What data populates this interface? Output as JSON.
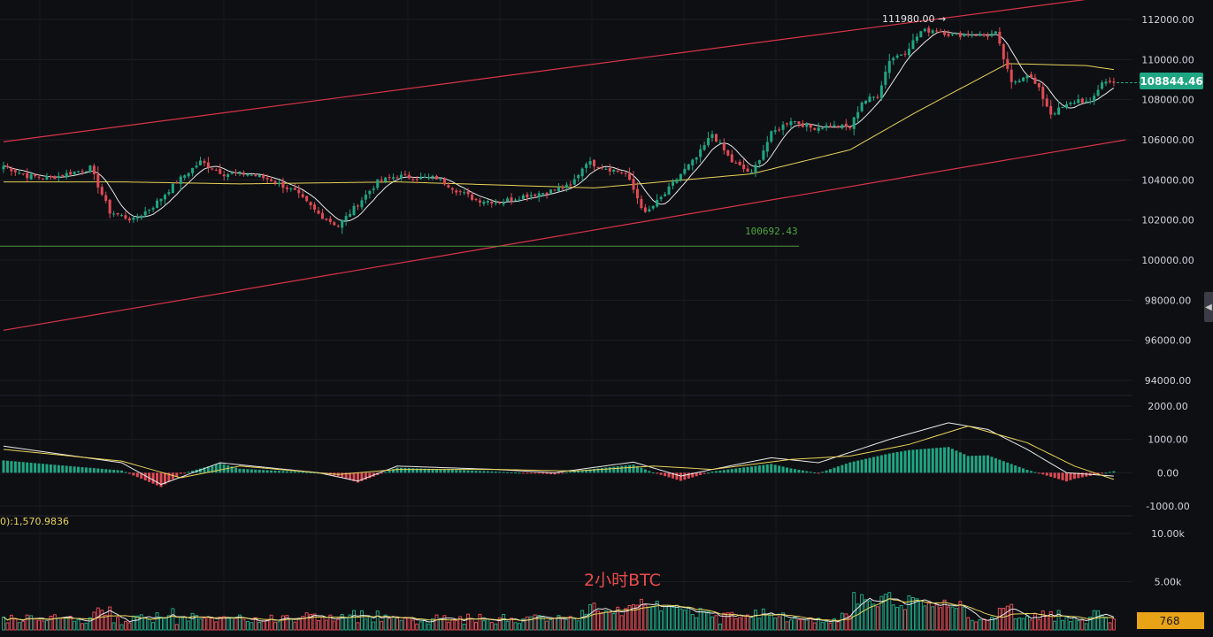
{
  "chart_data": [
    {
      "type": "candlestick",
      "title": "",
      "annotation_title": "2小时BTC",
      "yaxis": {
        "ticks": [
          "112000.00",
          "110000.00",
          "108000.00",
          "106000.00",
          "104000.00",
          "102000.00",
          "100000.00",
          "98000.00",
          "96000.00",
          "94000.00"
        ],
        "tick_values": [
          112000,
          110000,
          108000,
          106000,
          104000,
          102000,
          100000,
          98000,
          96000,
          94000
        ],
        "range": [
          93000,
          112800
        ]
      },
      "last_price": {
        "label": "108844.46",
        "value": 108844.46,
        "color": "#1fa683"
      },
      "high_marker": {
        "label": "111980.00 →",
        "value": 111980
      },
      "low_marker": {
        "label": "100692.43",
        "value": 100692.43
      },
      "colors": {
        "up": "#1fa683",
        "down": "#e04b55",
        "ma_fast": "#e9e9e9",
        "ma_slow": "#e8d45a",
        "channel": "#d9344a",
        "low_line": "#4c9a3b"
      },
      "channel_lines": [
        {
          "from": {
            "index": 0,
            "value": 105900
          },
          "to": {
            "index": 275,
            "value": 113000
          }
        },
        {
          "from": {
            "index": 0,
            "value": 96500
          },
          "to": {
            "index": 285,
            "value": 106000
          }
        }
      ],
      "anchors": [
        [
          0,
          104700
        ],
        [
          6,
          104200
        ],
        [
          12,
          104100
        ],
        [
          18,
          104400
        ],
        [
          22,
          104600
        ],
        [
          27,
          102400
        ],
        [
          33,
          102000
        ],
        [
          38,
          102700
        ],
        [
          44,
          103900
        ],
        [
          50,
          104900
        ],
        [
          56,
          104300
        ],
        [
          62,
          104300
        ],
        [
          68,
          104000
        ],
        [
          74,
          103400
        ],
        [
          80,
          102300
        ],
        [
          85,
          101700
        ],
        [
          90,
          102800
        ],
        [
          95,
          103900
        ],
        [
          100,
          104200
        ],
        [
          105,
          104100
        ],
        [
          110,
          104100
        ],
        [
          115,
          103500
        ],
        [
          120,
          103000
        ],
        [
          126,
          102900
        ],
        [
          132,
          103200
        ],
        [
          138,
          103400
        ],
        [
          144,
          103700
        ],
        [
          148,
          104900
        ],
        [
          153,
          104600
        ],
        [
          158,
          104300
        ],
        [
          163,
          102300
        ],
        [
          168,
          103300
        ],
        [
          172,
          104300
        ],
        [
          176,
          105100
        ],
        [
          180,
          106300
        ],
        [
          185,
          104900
        ],
        [
          190,
          104300
        ],
        [
          195,
          106300
        ],
        [
          200,
          107000
        ],
        [
          205,
          106600
        ],
        [
          210,
          106700
        ],
        [
          215,
          106600
        ],
        [
          218,
          107900
        ],
        [
          222,
          108200
        ],
        [
          225,
          110000
        ],
        [
          229,
          110400
        ],
        [
          233,
          111400
        ],
        [
          237,
          111500
        ],
        [
          241,
          111200
        ],
        [
          245,
          111300
        ],
        [
          249,
          111200
        ],
        [
          252,
          111300
        ],
        [
          256,
          108800
        ],
        [
          260,
          109300
        ],
        [
          263,
          108500
        ],
        [
          266,
          107300
        ],
        [
          270,
          107700
        ],
        [
          273,
          108000
        ],
        [
          276,
          107800
        ],
        [
          279,
          108900
        ],
        [
          282,
          108844
        ]
      ],
      "ma_slow_anchors": [
        [
          0,
          103900
        ],
        [
          30,
          103900
        ],
        [
          60,
          103800
        ],
        [
          100,
          103900
        ],
        [
          150,
          103600
        ],
        [
          190,
          104300
        ],
        [
          215,
          105500
        ],
        [
          232,
          107400
        ],
        [
          255,
          109800
        ],
        [
          275,
          109700
        ],
        [
          282,
          109500
        ]
      ]
    },
    {
      "type": "bar",
      "indicator": "MACD",
      "yaxis": {
        "ticks": [
          "2000.00",
          "1000.00",
          "0.00",
          "-1000.00"
        ],
        "tick_values": [
          2000,
          1000,
          0,
          -1000
        ],
        "range": [
          -1150,
          2150
        ]
      },
      "dif_anchors": [
        [
          0,
          800
        ],
        [
          30,
          300
        ],
        [
          40,
          -350
        ],
        [
          55,
          300
        ],
        [
          80,
          0
        ],
        [
          90,
          -250
        ],
        [
          100,
          200
        ],
        [
          125,
          100
        ],
        [
          140,
          0
        ],
        [
          160,
          320
        ],
        [
          172,
          -100
        ],
        [
          180,
          100
        ],
        [
          195,
          450
        ],
        [
          207,
          300
        ],
        [
          225,
          1000
        ],
        [
          240,
          1500
        ],
        [
          250,
          1300
        ],
        [
          260,
          700
        ],
        [
          270,
          0
        ],
        [
          282,
          -100
        ]
      ],
      "dea_anchors": [
        [
          0,
          700
        ],
        [
          30,
          350
        ],
        [
          45,
          -150
        ],
        [
          60,
          200
        ],
        [
          85,
          -50
        ],
        [
          100,
          100
        ],
        [
          125,
          100
        ],
        [
          145,
          50
        ],
        [
          165,
          200
        ],
        [
          180,
          100
        ],
        [
          200,
          400
        ],
        [
          215,
          500
        ],
        [
          230,
          850
        ],
        [
          245,
          1400
        ],
        [
          260,
          900
        ],
        [
          272,
          200
        ],
        [
          282,
          -200
        ]
      ]
    },
    {
      "type": "bar",
      "indicator": "Volume",
      "legend_label": "0):1,570.9836",
      "yaxis": {
        "ticks": [
          "10.00k",
          "5.00k"
        ],
        "tick_values": [
          10000,
          5000
        ],
        "range": [
          0,
          10400
        ]
      },
      "current_volume": {
        "label": "768",
        "value": 768,
        "color": "#e8a317"
      }
    }
  ]
}
